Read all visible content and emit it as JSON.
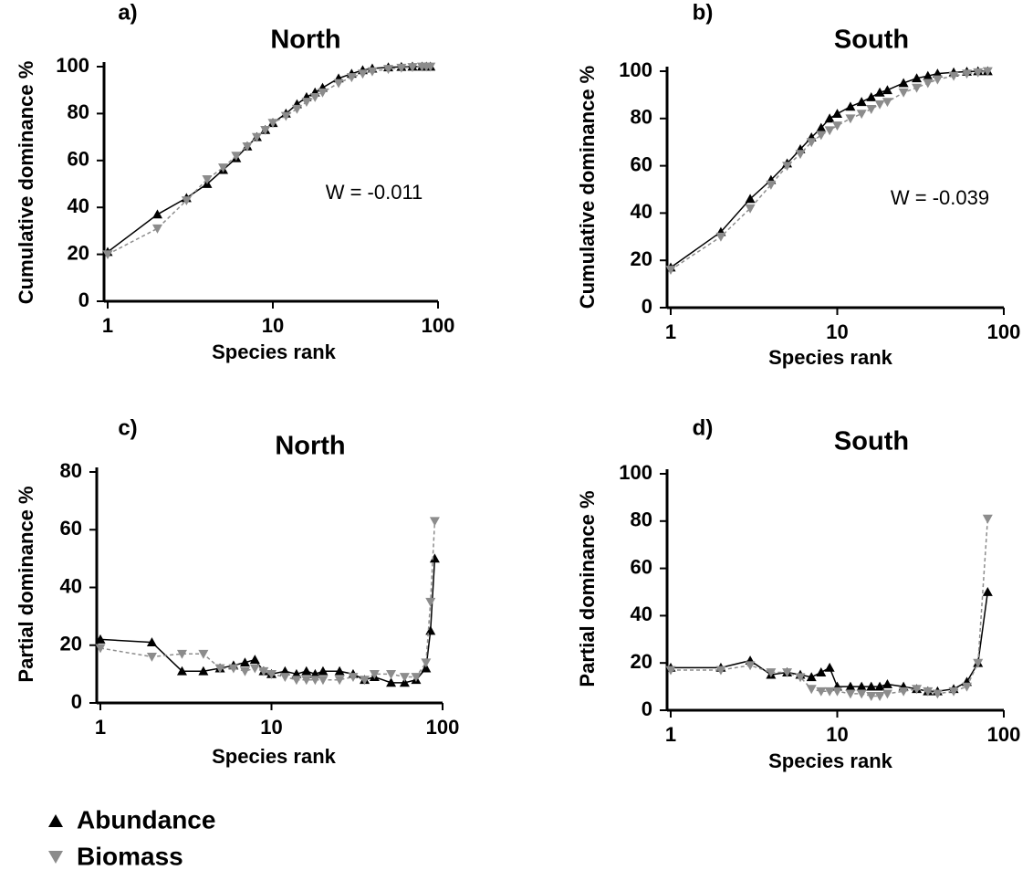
{
  "chart_data": [
    {
      "type": "line",
      "panel_label": "a)",
      "title": "North",
      "x_label": "Species rank",
      "y_label": "Cumulative dominance %",
      "annotation": "W = -0.011",
      "log_x": true,
      "xlim": [
        1,
        100
      ],
      "xticks": [
        1,
        10,
        100
      ],
      "ylim": [
        0,
        100
      ],
      "yticks": [
        0,
        20,
        40,
        60,
        80,
        100
      ],
      "x": [
        1,
        2,
        3,
        4,
        5,
        6,
        7,
        8,
        9,
        10,
        12,
        14,
        16,
        18,
        20,
        25,
        30,
        35,
        40,
        50,
        60,
        70,
        80,
        85,
        90
      ],
      "series": [
        {
          "name": "Abundance",
          "color": "#000000",
          "marker": "triangle-up",
          "line_style": "solid",
          "values": [
            21,
            37,
            44,
            50,
            56,
            61,
            66,
            70,
            73,
            76,
            80,
            84,
            87,
            89,
            91,
            95,
            97,
            98.5,
            99.2,
            99.7,
            99.9,
            100,
            100,
            100,
            100
          ]
        },
        {
          "name": "Biomass",
          "color": "#8c8c8c",
          "marker": "triangle-down",
          "line_style": "dashed",
          "values": [
            20,
            31,
            43,
            52,
            57,
            62,
            66,
            70,
            73,
            76,
            79,
            82,
            85,
            87,
            89,
            93,
            95.5,
            97,
            98,
            99,
            99.5,
            99.8,
            100,
            100,
            100
          ]
        }
      ]
    },
    {
      "type": "line",
      "panel_label": "b)",
      "title": "South",
      "x_label": "Species rank",
      "y_label": "Cumulative dominance %",
      "annotation": "W = -0.039",
      "log_x": true,
      "xlim": [
        1,
        100
      ],
      "xticks": [
        1,
        10,
        100
      ],
      "ylim": [
        0,
        100
      ],
      "yticks": [
        0,
        20,
        40,
        60,
        80,
        100
      ],
      "x": [
        1,
        2,
        3,
        4,
        5,
        6,
        7,
        8,
        9,
        10,
        12,
        14,
        16,
        18,
        20,
        25,
        30,
        35,
        40,
        50,
        60,
        70,
        80
      ],
      "series": [
        {
          "name": "Abundance",
          "color": "#000000",
          "marker": "triangle-up",
          "line_style": "solid",
          "values": [
            17,
            32,
            46,
            54,
            61,
            67,
            72,
            76,
            80,
            82,
            85,
            87,
            89,
            91,
            92,
            95,
            97,
            98,
            99,
            99.5,
            99.8,
            100,
            100
          ]
        },
        {
          "name": "Biomass",
          "color": "#8c8c8c",
          "marker": "triangle-down",
          "line_style": "dashed",
          "values": [
            16,
            30,
            42,
            52,
            60,
            65,
            70,
            73,
            75,
            77,
            80,
            82,
            84,
            86,
            87,
            91,
            93,
            95,
            96.5,
            98,
            99,
            99.5,
            100
          ]
        }
      ]
    },
    {
      "type": "line",
      "panel_label": "c)",
      "title": "North",
      "x_label": "Species rank",
      "y_label": "Partial dominance %",
      "log_x": true,
      "xlim": [
        1,
        100
      ],
      "xticks": [
        1,
        10,
        100
      ],
      "ylim": [
        0,
        80
      ],
      "yticks": [
        0,
        20,
        40,
        60,
        80
      ],
      "x": [
        1,
        2,
        3,
        4,
        5,
        6,
        7,
        8,
        9,
        10,
        12,
        14,
        16,
        18,
        20,
        25,
        30,
        35,
        40,
        50,
        60,
        70,
        80,
        85,
        90
      ],
      "series": [
        {
          "name": "Abundance",
          "color": "#000000",
          "marker": "triangle-up",
          "line_style": "solid",
          "values": [
            22,
            21,
            11,
            11,
            12,
            13,
            14,
            15,
            11,
            10,
            11,
            10,
            11,
            10,
            11,
            11,
            10,
            8,
            9,
            7,
            7,
            8,
            12,
            25,
            50
          ]
        },
        {
          "name": "Biomass",
          "color": "#8c8c8c",
          "marker": "triangle-down",
          "line_style": "dashed",
          "values": [
            19,
            16,
            17,
            17,
            12,
            12,
            11,
            12,
            11,
            10,
            9,
            8,
            8,
            8,
            8,
            8,
            9,
            8,
            10,
            10,
            9,
            9,
            14,
            35,
            63
          ]
        }
      ]
    },
    {
      "type": "line",
      "panel_label": "d)",
      "title": "South",
      "x_label": "Species rank",
      "y_label": "Partial dominance %",
      "log_x": true,
      "xlim": [
        1,
        100
      ],
      "xticks": [
        1,
        10,
        100
      ],
      "ylim": [
        0,
        100
      ],
      "yticks": [
        0,
        20,
        40,
        60,
        80,
        100
      ],
      "x": [
        1,
        2,
        3,
        4,
        5,
        6,
        7,
        8,
        9,
        10,
        12,
        14,
        16,
        18,
        20,
        25,
        30,
        35,
        40,
        50,
        60,
        70,
        80
      ],
      "series": [
        {
          "name": "Abundance",
          "color": "#000000",
          "marker": "triangle-up",
          "line_style": "solid",
          "values": [
            18,
            18,
            21,
            15,
            16,
            15,
            14,
            16,
            18,
            10,
            10,
            10,
            10,
            10,
            11,
            10,
            9,
            8,
            8,
            9,
            12,
            20,
            50
          ]
        },
        {
          "name": "Biomass",
          "color": "#8c8c8c",
          "marker": "triangle-down",
          "line_style": "dashed",
          "values": [
            17,
            17,
            19,
            16,
            16,
            14,
            9,
            8,
            8,
            8,
            7,
            7,
            6,
            6,
            7,
            8,
            9,
            8,
            7,
            8,
            10,
            20,
            81
          ]
        }
      ]
    }
  ]
}
